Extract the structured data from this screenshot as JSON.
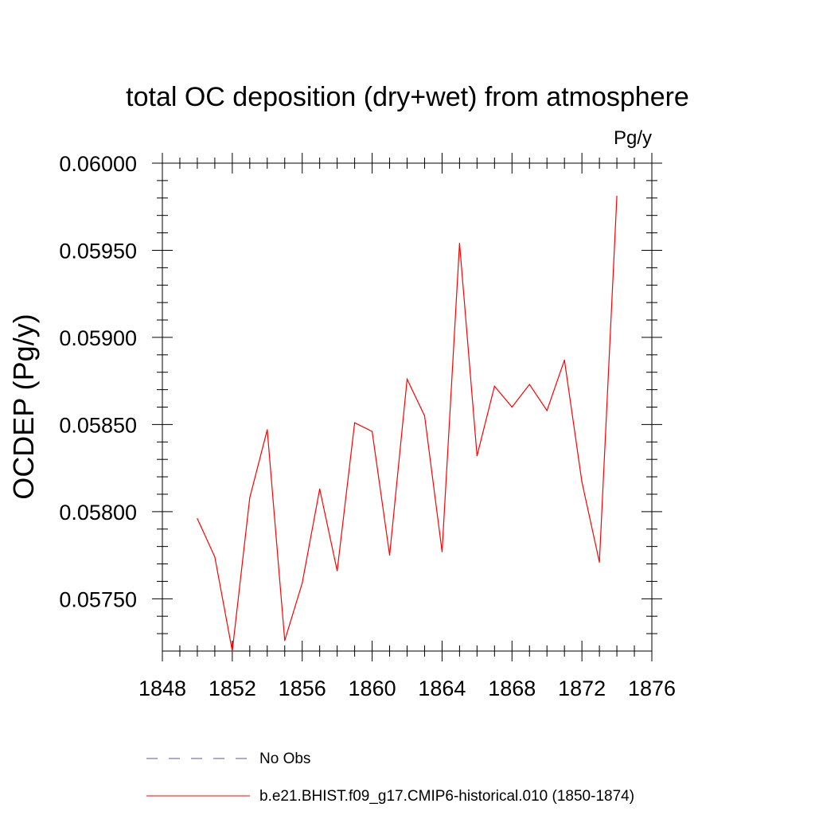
{
  "chart_data": {
    "type": "line",
    "title": "total OC deposition (dry+wet) from atmosphere",
    "units_label": "Pg/y",
    "ylabel": "OCDEP  (Pg/y)",
    "xlabel": "",
    "xlim": [
      1848,
      1876
    ],
    "ylim": [
      0.0572,
      0.06
    ],
    "x_ticks": [
      1848,
      1852,
      1856,
      1860,
      1864,
      1868,
      1872,
      1876
    ],
    "x_tick_labels": [
      "1848",
      "1852",
      "1856",
      "1860",
      "1864",
      "1868",
      "1872",
      "1876"
    ],
    "y_ticks": [
      0.0575,
      0.058,
      0.0585,
      0.059,
      0.0595,
      0.06
    ],
    "y_tick_labels": [
      "0.05750",
      "0.05800",
      "0.05850",
      "0.05900",
      "0.05950",
      "0.06000"
    ],
    "grid": false,
    "series": [
      {
        "name": "b.e21.BHIST.f09_g17.CMIP6-historical.010 (1850-1874)",
        "color": "#ff0000",
        "dash": "solid",
        "x": [
          1850,
          1851,
          1852,
          1853,
          1854,
          1855,
          1856,
          1857,
          1858,
          1859,
          1860,
          1861,
          1862,
          1863,
          1864,
          1865,
          1866,
          1867,
          1868,
          1869,
          1870,
          1871,
          1872,
          1873,
          1874
        ],
        "values": [
          0.05796,
          0.05774,
          0.0572,
          0.05808,
          0.05847,
          0.05726,
          0.05759,
          0.05813,
          0.05766,
          0.05851,
          0.05846,
          0.05775,
          0.05876,
          0.05855,
          0.05777,
          0.05954,
          0.05832,
          0.05872,
          0.0586,
          0.05873,
          0.05858,
          0.05887,
          0.05817,
          0.05771,
          0.05981
        ]
      }
    ],
    "legend": {
      "placement": "bottom",
      "entries": [
        {
          "label": "No Obs",
          "color": "#5555aa",
          "dash": "dashed"
        },
        {
          "label": "b.e21.BHIST.f09_g17.CMIP6-historical.010 (1850-1874)",
          "color": "#ff0000",
          "dash": "solid"
        }
      ]
    }
  }
}
